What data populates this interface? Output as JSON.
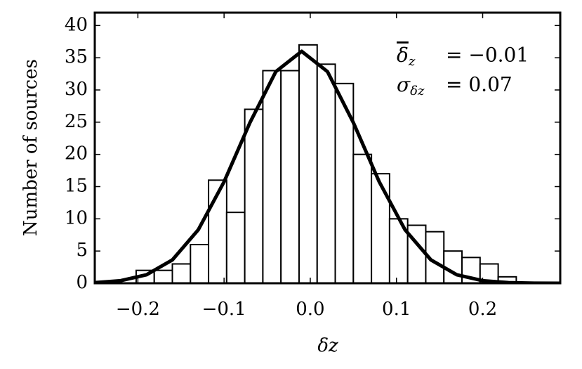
{
  "chart_data": {
    "type": "histogram",
    "xlabel": "δz",
    "ylabel": "Number of sources",
    "bins": [
      -0.202,
      -0.181,
      -0.16,
      -0.139,
      -0.118,
      -0.097,
      -0.076,
      -0.055,
      -0.034,
      -0.013,
      0.008,
      0.029,
      0.05,
      0.071,
      0.092,
      0.113,
      0.134,
      0.155,
      0.176,
      0.197,
      0.218,
      0.239
    ],
    "values": [
      2,
      2,
      3,
      6,
      16,
      11,
      27,
      33,
      33,
      37,
      34,
      31,
      20,
      17,
      10,
      9,
      8,
      5,
      4,
      3,
      1
    ],
    "color": "#ffffff",
    "edgecolor": "#000000",
    "curve": {
      "x": [
        -0.25,
        -0.22,
        -0.19,
        -0.16,
        -0.13,
        -0.1,
        -0.07,
        -0.04,
        -0.01,
        0.02,
        0.05,
        0.08,
        0.11,
        0.14,
        0.17,
        0.2,
        0.23,
        0.26,
        0.29
      ],
      "values": [
        0.1,
        0.4,
        1.32,
        3.62,
        8.29,
        15.75,
        24.93,
        32.84,
        36,
        32.84,
        24.93,
        15.75,
        8.29,
        3.62,
        1.32,
        0.4,
        0.1,
        0.02,
        0.0
      ],
      "color": "#000000"
    },
    "xlim": [
      -0.25,
      0.29
    ],
    "ylim": [
      0,
      42
    ],
    "xticks": [
      {
        "value": -0.2,
        "label": "−0.2"
      },
      {
        "value": -0.1,
        "label": "−0.1"
      },
      {
        "value": 0,
        "label": "0.0"
      },
      0.1,
      0.2
    ],
    "yticks": [
      0,
      5,
      10,
      15,
      20,
      25,
      30,
      35,
      40
    ],
    "annotations": [
      {
        "symbol": "δ",
        "sub": "z",
        "text": "= −0.01"
      },
      {
        "symbol": "σ",
        "sub": "δz",
        "text": "= 0.07"
      }
    ]
  }
}
